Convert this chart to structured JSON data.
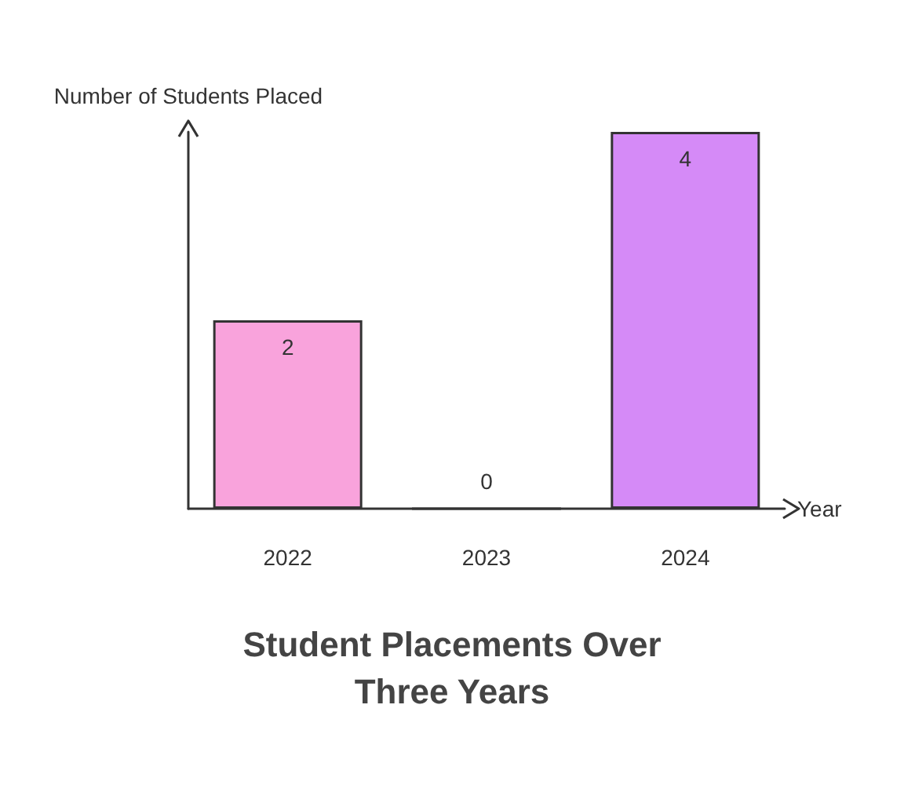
{
  "chart_data": {
    "type": "bar",
    "title": "Student Placements Over Three Years",
    "xlabel": "Year",
    "ylabel": "Number of Students Placed",
    "categories": [
      "2022",
      "2023",
      "2024"
    ],
    "values": [
      2,
      0,
      4
    ],
    "colors": [
      "#f9a3dc",
      "#f0a0e8",
      "#d58af7"
    ],
    "data_labels": true,
    "grid": false
  }
}
